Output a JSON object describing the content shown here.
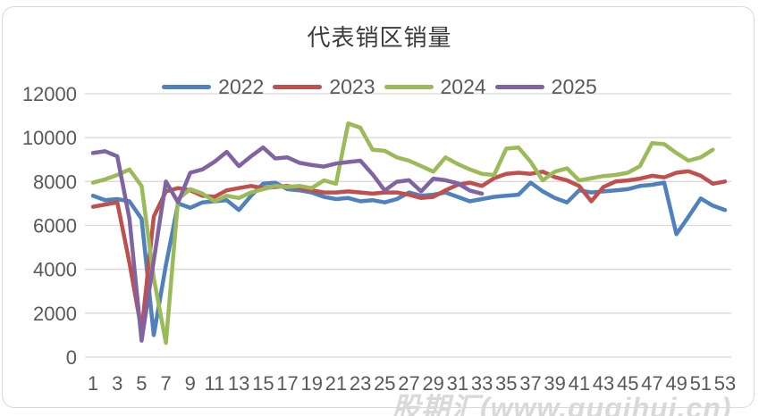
{
  "watermark": "股期汇(www.guqihui.cn)",
  "chart_data": {
    "type": "line",
    "title": "代表销区销量",
    "xlabel": "",
    "ylabel": "",
    "x": [
      1,
      2,
      3,
      4,
      5,
      6,
      7,
      8,
      9,
      10,
      11,
      12,
      13,
      14,
      15,
      16,
      17,
      18,
      19,
      20,
      21,
      22,
      23,
      24,
      25,
      26,
      27,
      28,
      29,
      30,
      31,
      32,
      33,
      34,
      35,
      36,
      37,
      38,
      39,
      40,
      41,
      42,
      43,
      44,
      45,
      46,
      47,
      48,
      49,
      50,
      51,
      52,
      53
    ],
    "x_tick_labels": [
      "1",
      "3",
      "5",
      "7",
      "9",
      "11",
      "13",
      "15",
      "17",
      "19",
      "21",
      "23",
      "25",
      "27",
      "29",
      "31",
      "33",
      "35",
      "37",
      "39",
      "41",
      "43",
      "45",
      "47",
      "49",
      "51",
      "53"
    ],
    "y_ticks": [
      0,
      2000,
      4000,
      6000,
      8000,
      10000,
      12000
    ],
    "ylim": [
      0,
      12000
    ],
    "grid": "horizontal",
    "grid_color": "#d9d9d9",
    "text_color": "#595959",
    "legend_position": "top",
    "series": [
      {
        "name": "2022",
        "color": "#4F81BD",
        "values": [
          7350,
          7150,
          7200,
          7100,
          6300,
          1000,
          4200,
          7000,
          6800,
          7050,
          7100,
          7150,
          6700,
          7350,
          7900,
          7950,
          7650,
          7600,
          7500,
          7300,
          7200,
          7250,
          7100,
          7150,
          7050,
          7200,
          7500,
          7350,
          7400,
          7500,
          7300,
          7100,
          7200,
          7300,
          7350,
          7400,
          7950,
          7550,
          7250,
          7050,
          7600,
          7500,
          7550,
          7600,
          7650,
          7800,
          7850,
          7950,
          5600,
          6400,
          7230,
          6900,
          6700
        ]
      },
      {
        "name": "2023",
        "color": "#C0504D",
        "values": [
          6850,
          6950,
          7050,
          4300,
          1200,
          6400,
          7550,
          7700,
          7600,
          7350,
          7300,
          7600,
          7700,
          7800,
          7700,
          7750,
          7800,
          7700,
          7600,
          7500,
          7500,
          7550,
          7500,
          7450,
          7500,
          7500,
          7400,
          7250,
          7300,
          7600,
          7850,
          7950,
          7800,
          8150,
          8350,
          8400,
          8350,
          8450,
          8200,
          8050,
          7800,
          7100,
          7750,
          8000,
          8050,
          8130,
          8260,
          8190,
          8400,
          8470,
          8260,
          7900,
          8000
        ]
      },
      {
        "name": "2024",
        "color": "#9BBB59",
        "values": [
          7950,
          8100,
          8300,
          8550,
          7800,
          3600,
          650,
          7200,
          7650,
          7450,
          7100,
          7350,
          7250,
          7500,
          7650,
          7800,
          7750,
          7800,
          7700,
          8050,
          7900,
          10650,
          10450,
          9450,
          9400,
          9100,
          8950,
          8700,
          8450,
          9100,
          8800,
          8550,
          8350,
          8300,
          9500,
          9550,
          8900,
          8050,
          8450,
          8600,
          8050,
          8150,
          8250,
          8300,
          8400,
          8700,
          9750,
          9700,
          9300,
          8950,
          9100,
          9450,
          null
        ]
      },
      {
        "name": "2025",
        "color": "#8064A2",
        "values": [
          9300,
          9380,
          9150,
          6300,
          750,
          4400,
          8000,
          7050,
          8400,
          8550,
          8900,
          9350,
          8700,
          9150,
          9550,
          9050,
          9100,
          8850,
          8750,
          8680,
          8820,
          8890,
          8950,
          8330,
          7590,
          7990,
          8060,
          7550,
          8130,
          8060,
          7920,
          7590,
          7450,
          null,
          null,
          null,
          null,
          null,
          null,
          null,
          null,
          null,
          null,
          null,
          null,
          null,
          null,
          null,
          null,
          null,
          null,
          null,
          null
        ]
      }
    ]
  }
}
